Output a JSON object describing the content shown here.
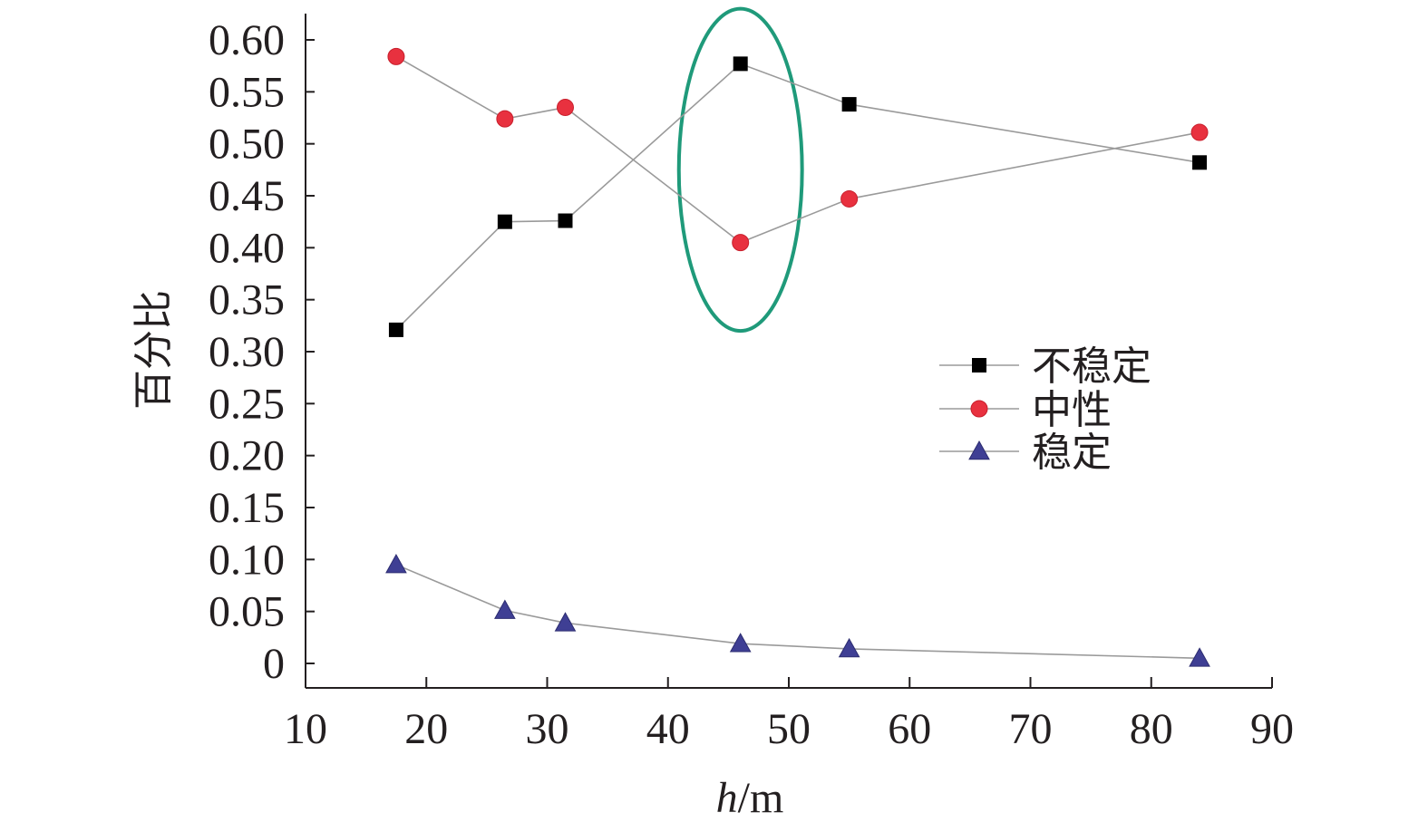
{
  "chart_data": {
    "type": "line",
    "xlabel": "h/m",
    "xlabel_italic_part": "h",
    "xlabel_rest": "/m",
    "ylabel": "百分比",
    "xlim": [
      10,
      90
    ],
    "ylim": [
      0,
      0.6
    ],
    "x_ticks": [
      10,
      20,
      30,
      40,
      50,
      60,
      70,
      80,
      90
    ],
    "y_ticks": [
      0,
      0.05,
      0.1,
      0.15,
      0.2,
      0.25,
      0.3,
      0.35,
      0.4,
      0.45,
      0.5,
      0.55,
      0.6
    ],
    "y_tick_labels": [
      "0",
      "0.05",
      "0.10",
      "0.15",
      "0.20",
      "0.25",
      "0.30",
      "0.35",
      "0.40",
      "0.45",
      "0.50",
      "0.55",
      "0.60"
    ],
    "x_tick_labels": [
      "10",
      "20",
      "30",
      "40",
      "50",
      "60",
      "70",
      "80",
      "90"
    ],
    "grid": false,
    "legend_position": "right-middle",
    "x": [
      17.5,
      26.5,
      31.5,
      46,
      55,
      84
    ],
    "series": [
      {
        "name": "不稳定",
        "marker": "square",
        "color": "#000000",
        "values": [
          0.321,
          0.425,
          0.426,
          0.577,
          0.538,
          0.482
        ]
      },
      {
        "name": "中性",
        "marker": "circle",
        "color": "#e8313f",
        "values": [
          0.584,
          0.524,
          0.535,
          0.405,
          0.447,
          0.511
        ]
      },
      {
        "name": "稳定",
        "marker": "triangle",
        "color": "#3f3f94",
        "values": [
          0.095,
          0.051,
          0.039,
          0.019,
          0.014,
          0.005
        ]
      }
    ],
    "annotation": {
      "type": "ellipse",
      "color": "#1f9a7a",
      "center_x": 46,
      "center_y": 0.475,
      "radius_x": 5.1,
      "radius_y": 0.155
    },
    "line_color": "#9a9a9a"
  }
}
